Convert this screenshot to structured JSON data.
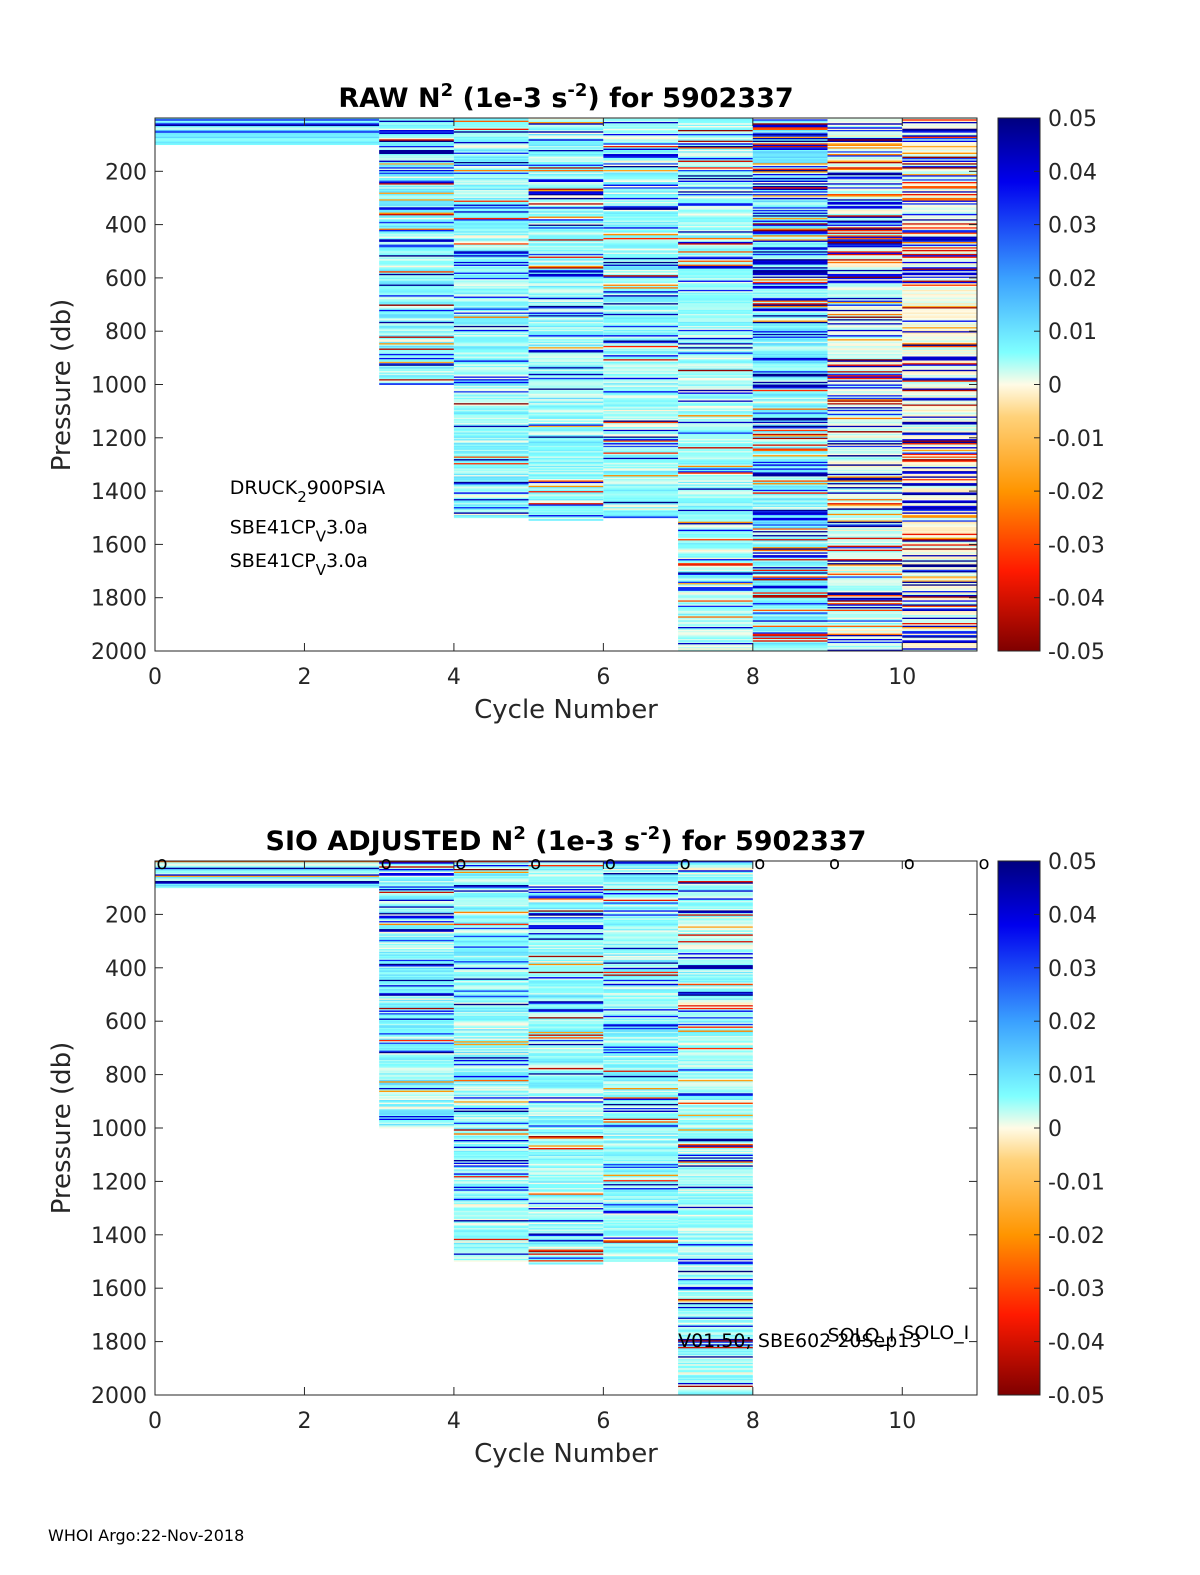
{
  "float_id": "5902337",
  "footer": "WHOI Argo:22-Nov-2018",
  "chart_data": [
    {
      "type": "heatmap",
      "title": {
        "prefix": "RAW N",
        "sup1": "2",
        "mid": " (1e-3 s",
        "sup2": "-2",
        "suffix": ") for 5902337"
      },
      "xlabel": "Cycle Number",
      "ylabel": "Pressure (db)",
      "xlim": [
        0,
        11
      ],
      "ylim": [
        2000,
        0
      ],
      "xticks": [
        "0",
        "2",
        "4",
        "6",
        "8",
        "10"
      ],
      "yticks": [
        "200",
        "400",
        "600",
        "800",
        "1000",
        "1200",
        "1400",
        "1600",
        "1800",
        "2000"
      ],
      "clim": [
        -0.05,
        0.05
      ],
      "colorbar_ticks": [
        "0.05",
        "0.04",
        "0.03",
        "0.02",
        "0.01",
        "0",
        "-0.01",
        "-0.02",
        "-0.03",
        "-0.04",
        "-0.05"
      ],
      "profiles": [
        {
          "x0": 0,
          "x1": 3,
          "p_top": 0,
          "p_bottom": 100,
          "variability": 0.35,
          "bias": 0.3
        },
        {
          "x0": 3,
          "x1": 4,
          "p_top": 0,
          "p_bottom": 1000,
          "variability": 0.35,
          "bias": 0.22
        },
        {
          "x0": 4,
          "x1": 5,
          "p_top": 0,
          "p_bottom": 1500,
          "variability": 0.3,
          "bias": 0.2
        },
        {
          "x0": 5,
          "x1": 6,
          "p_top": 0,
          "p_bottom": 1510,
          "variability": 0.3,
          "bias": 0.2
        },
        {
          "x0": 6,
          "x1": 7,
          "p_top": 0,
          "p_bottom": 1500,
          "variability": 0.3,
          "bias": 0.2
        },
        {
          "x0": 7,
          "x1": 8,
          "p_top": 0,
          "p_bottom": 2000,
          "variability": 0.4,
          "bias": 0.18
        },
        {
          "x0": 8,
          "x1": 9,
          "p_top": 0,
          "p_bottom": 2000,
          "variability": 0.95,
          "bias": 0.25
        },
        {
          "x0": 9,
          "x1": 10,
          "p_top": 0,
          "p_bottom": 2000,
          "variability": 0.85,
          "bias": 0.1
        },
        {
          "x0": 10,
          "x1": 11,
          "p_top": 0,
          "p_bottom": 2000,
          "variability": 1.0,
          "bias": 0.05
        }
      ],
      "annotations": [
        {
          "x": 1,
          "p": 1410,
          "base": "DRUCK",
          "sub": "2",
          "rest": "900PSIA"
        },
        {
          "x": 1,
          "p": 1560,
          "base": "SBE41CP",
          "sub": "V",
          "rest": "3.0a"
        },
        {
          "x": 1,
          "p": 1685,
          "base": "SBE41CP",
          "sub": "V",
          "rest": "3.0a"
        }
      ]
    },
    {
      "type": "heatmap",
      "title": {
        "prefix": "SIO  ADJUSTED N",
        "sup1": "2",
        "mid": " (1e-3 s",
        "sup2": "-2",
        "suffix": ") for 5902337"
      },
      "xlabel": "Cycle Number",
      "ylabel": "Pressure (db)",
      "xlim": [
        0,
        11
      ],
      "ylim": [
        2000,
        0
      ],
      "xticks": [
        "0",
        "2",
        "4",
        "6",
        "8",
        "10"
      ],
      "yticks": [
        "200",
        "400",
        "600",
        "800",
        "1000",
        "1200",
        "1400",
        "1600",
        "1800",
        "2000"
      ],
      "clim": [
        -0.05,
        0.05
      ],
      "colorbar_ticks": [
        "0.05",
        "0.04",
        "0.03",
        "0.02",
        "0.01",
        "0",
        "-0.01",
        "-0.02",
        "-0.03",
        "-0.04",
        "-0.05"
      ],
      "profiles": [
        {
          "x0": 0,
          "x1": 3,
          "p_top": 0,
          "p_bottom": 100,
          "variability": 0.3,
          "bias": 0.3
        },
        {
          "x0": 3,
          "x1": 4,
          "p_top": 0,
          "p_bottom": 1000,
          "variability": 0.3,
          "bias": 0.22
        },
        {
          "x0": 4,
          "x1": 5,
          "p_top": 0,
          "p_bottom": 1500,
          "variability": 0.28,
          "bias": 0.2
        },
        {
          "x0": 5,
          "x1": 6,
          "p_top": 0,
          "p_bottom": 1510,
          "variability": 0.28,
          "bias": 0.2
        },
        {
          "x0": 6,
          "x1": 7,
          "p_top": 0,
          "p_bottom": 1500,
          "variability": 0.28,
          "bias": 0.2
        },
        {
          "x0": 7,
          "x1": 8,
          "p_top": 0,
          "p_bottom": 2000,
          "variability": 0.35,
          "bias": 0.16
        }
      ],
      "cycle_markers": {
        "x": [
          0,
          3,
          4,
          5,
          6,
          7,
          8,
          9,
          10,
          11
        ],
        "label": "o"
      },
      "annotations_text": [
        {
          "x": 7,
          "p": 1820,
          "text": "V01.50; SBE602 20Sep13"
        },
        {
          "x": 9,
          "p": 1800,
          "text": "SOLO_I"
        },
        {
          "x": 10,
          "p": 1790,
          "text": "SOLO_I"
        }
      ]
    }
  ]
}
